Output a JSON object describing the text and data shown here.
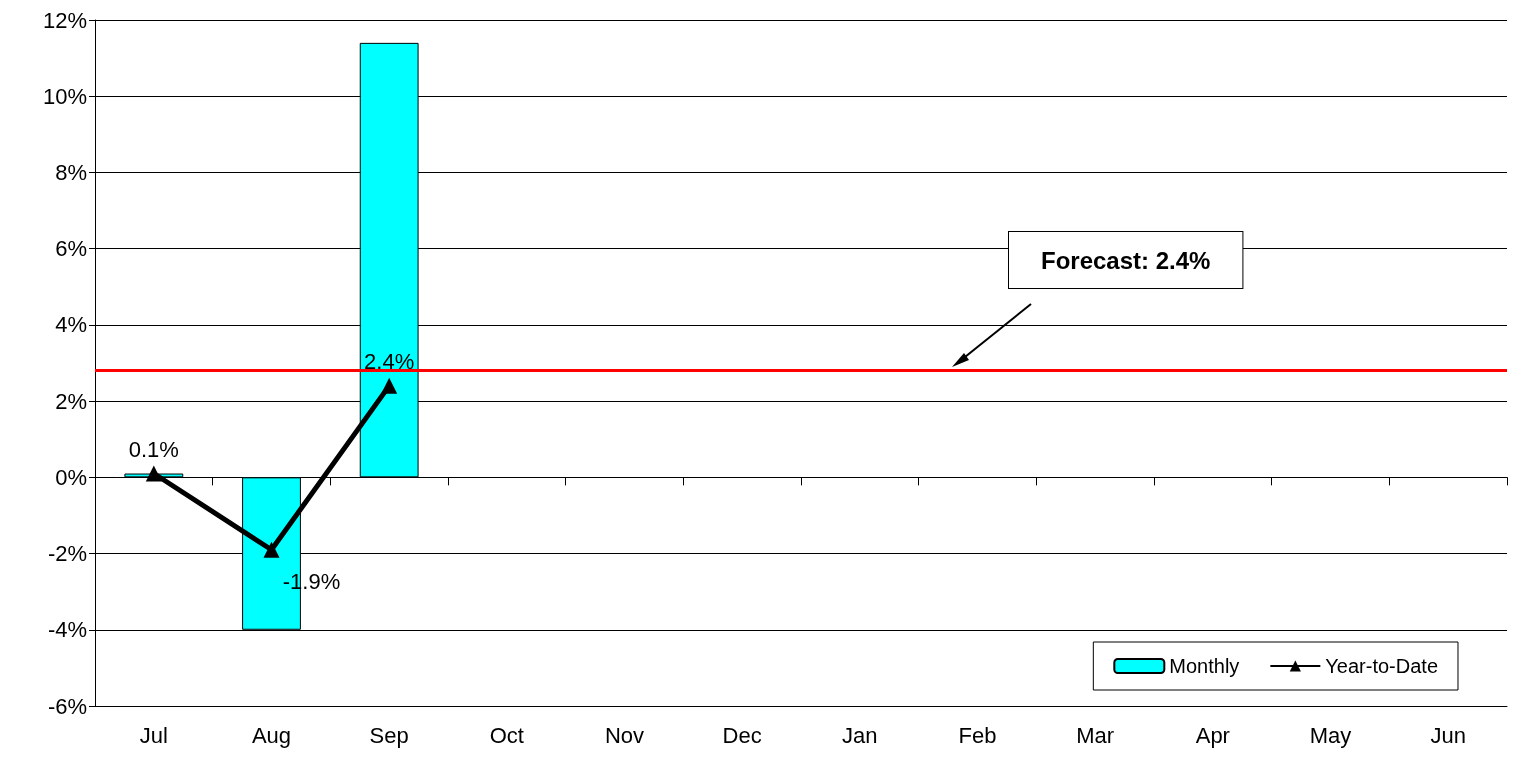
{
  "chart_data": {
    "type": "bar",
    "categories": [
      "Jul",
      "Aug",
      "Sep",
      "Oct",
      "Nov",
      "Dec",
      "Jan",
      "Feb",
      "Mar",
      "Apr",
      "May",
      "Jun"
    ],
    "series": [
      {
        "name": "Monthly",
        "color": "#00ffff",
        "values": [
          0.1,
          -4.0,
          11.4,
          null,
          null,
          null,
          null,
          null,
          null,
          null,
          null,
          null
        ]
      },
      {
        "name": "Year-to-Date",
        "type": "line",
        "color": "#000000",
        "marker": "triangle",
        "values": [
          0.1,
          -1.9,
          2.4,
          null,
          null,
          null,
          null,
          null,
          null,
          null,
          null,
          null
        ],
        "value_labels": [
          "0.1%",
          "-1.9%",
          "2.4%",
          null,
          null,
          null,
          null,
          null,
          null,
          null,
          null,
          null
        ]
      }
    ],
    "ylim": [
      -6,
      12
    ],
    "yticks": [
      {
        "value": -6,
        "label": "-6%"
      },
      {
        "value": -4,
        "label": "-4%"
      },
      {
        "value": -2,
        "label": "-2%"
      },
      {
        "value": 0,
        "label": "0%"
      },
      {
        "value": 2,
        "label": "2%"
      },
      {
        "value": 4,
        "label": "4%"
      },
      {
        "value": 6,
        "label": "6%"
      },
      {
        "value": 8,
        "label": "8%"
      },
      {
        "value": 10,
        "label": "10%"
      },
      {
        "value": 12,
        "label": "12%"
      }
    ],
    "ref_lines": [
      {
        "axis": "y",
        "value": 2.8,
        "color": "#ff0000"
      }
    ],
    "annotations": [
      "Forecast: 2.4%"
    ],
    "grid": "y",
    "legend": "bottom right"
  }
}
